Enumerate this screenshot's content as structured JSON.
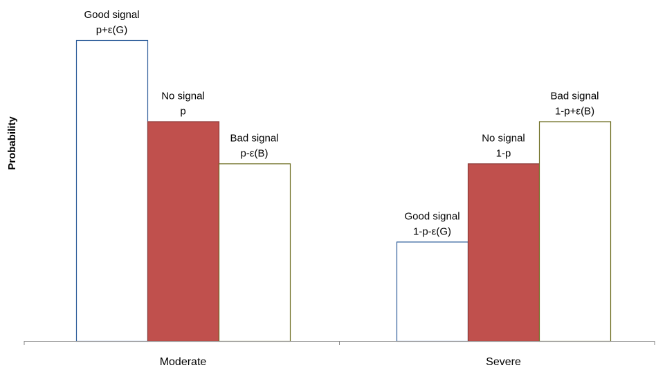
{
  "chart_data": {
    "type": "bar",
    "title": "",
    "xlabel": "",
    "ylabel": "Probability",
    "categories": [
      "Moderate",
      "Severe"
    ],
    "ylim": [
      0,
      100
    ],
    "grid": false,
    "legend": "none",
    "series": [
      {
        "key": "good",
        "fill": "#ffffff",
        "stroke": "#2e5d9a",
        "values": [
          100,
          33
        ],
        "labels": [
          [
            "Good signal",
            "p+ε(G)"
          ],
          [
            "Good signal",
            "1-p-ε(G)"
          ]
        ]
      },
      {
        "key": "none",
        "fill": "#c0504d",
        "stroke": "#8c3a38",
        "values": [
          73,
          59
        ],
        "labels": [
          [
            "No signal",
            "p"
          ],
          [
            "No signal",
            "1-p"
          ]
        ]
      },
      {
        "key": "bad",
        "fill": "#ffffff",
        "stroke": "#6b6b1e",
        "values": [
          59,
          73
        ],
        "labels": [
          [
            "Bad signal",
            "p-ε(B)"
          ],
          [
            "Bad signal",
            "1-p+ε(B)"
          ]
        ]
      }
    ]
  }
}
